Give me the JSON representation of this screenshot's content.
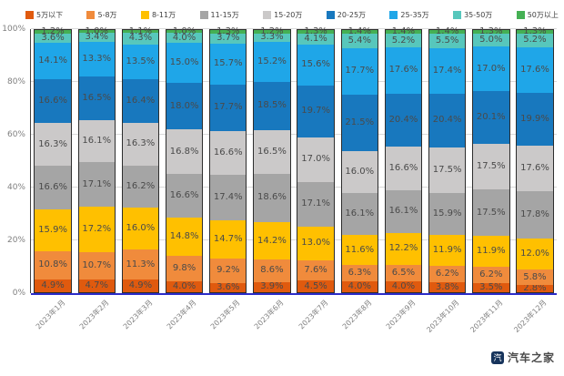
{
  "watermark": {
    "text": "汽车之家",
    "icon": "autohome-logo"
  },
  "chart_data": {
    "type": "bar",
    "stacked": true,
    "percent_stacked": true,
    "title": "",
    "xlabel": "",
    "ylabel": "",
    "ylim": [
      0,
      100
    ],
    "grid": true,
    "legend_position": "top",
    "y_ticks": [
      "0%",
      "20%",
      "40%",
      "60%",
      "80%",
      "100%"
    ],
    "categories": [
      "2023年1月",
      "2023年2月",
      "2023年3月",
      "2023年4月",
      "2023年5月",
      "2023年6月",
      "2023年7月",
      "2023年8月",
      "2023年9月",
      "2023年10月",
      "2023年11月",
      "2023年12月"
    ],
    "series": [
      {
        "name": "5万以下",
        "color": "#E05A0E",
        "values": [
          4.9,
          4.7,
          4.9,
          4.0,
          3.6,
          3.9,
          4.5,
          4.0,
          4.0,
          3.8,
          3.5,
          2.8
        ]
      },
      {
        "name": "5-8万",
        "color": "#F08B3C",
        "values": [
          10.8,
          10.7,
          11.3,
          9.8,
          9.2,
          8.6,
          7.6,
          6.3,
          6.5,
          6.2,
          6.2,
          5.8
        ]
      },
      {
        "name": "8-11万",
        "color": "#FFC000",
        "values": [
          15.9,
          17.2,
          16.0,
          14.8,
          14.7,
          14.2,
          13.0,
          11.6,
          12.2,
          11.9,
          11.9,
          12.0
        ]
      },
      {
        "name": "11-15万",
        "color": "#A5A5A5",
        "values": [
          16.6,
          17.1,
          16.2,
          16.6,
          17.4,
          18.6,
          17.1,
          16.1,
          16.1,
          15.9,
          17.5,
          17.8
        ]
      },
      {
        "name": "15-20万",
        "color": "#CBC9C9",
        "values": [
          16.3,
          16.1,
          16.3,
          16.8,
          16.6,
          16.5,
          17.0,
          16.0,
          16.6,
          17.5,
          17.5,
          17.6
        ]
      },
      {
        "name": "20-25万",
        "color": "#1878BE",
        "values": [
          16.6,
          16.5,
          16.4,
          18.0,
          17.7,
          18.5,
          19.7,
          21.5,
          20.4,
          20.4,
          20.1,
          19.9
        ]
      },
      {
        "name": "25-35万",
        "color": "#1FA6E8",
        "values": [
          14.1,
          13.3,
          13.5,
          15.0,
          15.7,
          15.2,
          15.6,
          17.7,
          17.6,
          17.4,
          17.0,
          17.6
        ]
      },
      {
        "name": "35-50万",
        "color": "#57C7BC",
        "values": [
          3.6,
          3.4,
          4.3,
          4.0,
          3.7,
          3.3,
          4.1,
          5.4,
          5.2,
          5.5,
          5.0,
          5.2
        ]
      },
      {
        "name": "50万以上",
        "color": "#45B054",
        "values": [
          1.2,
          1.0,
          1.1,
          1.0,
          1.3,
          1.2,
          1.3,
          1.4,
          1.4,
          1.4,
          1.3,
          1.3
        ]
      }
    ]
  }
}
